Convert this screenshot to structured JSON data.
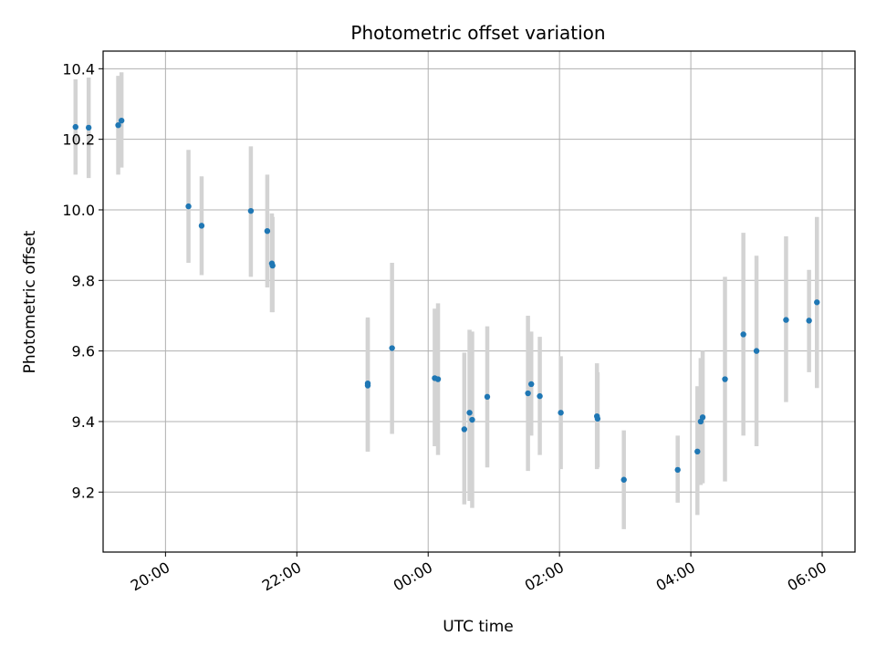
{
  "chart_data": {
    "type": "scatter",
    "title": "Photometric offset variation",
    "xlabel": "UTC time",
    "ylabel": "Photometric offset",
    "x_unit": "hours since 00:00 UTC (negative = previous evening)",
    "xlim": [
      -4.95,
      6.5
    ],
    "ylim": [
      9.03,
      10.45
    ],
    "xticks": [
      {
        "value": -4,
        "label": "20:00"
      },
      {
        "value": -2,
        "label": "22:00"
      },
      {
        "value": 0,
        "label": "00:00"
      },
      {
        "value": 2,
        "label": "02:00"
      },
      {
        "value": 4,
        "label": "04:00"
      },
      {
        "value": 6,
        "label": "06:00"
      }
    ],
    "yticks": [
      {
        "value": 9.2,
        "label": "9.2"
      },
      {
        "value": 9.4,
        "label": "9.4"
      },
      {
        "value": 9.6,
        "label": "9.6"
      },
      {
        "value": 9.8,
        "label": "9.8"
      },
      {
        "value": 10.0,
        "label": "10.0"
      },
      {
        "value": 10.2,
        "label": "10.2"
      },
      {
        "value": 10.4,
        "label": "10.4"
      }
    ],
    "grid": true,
    "marker_color": "#1f77b4",
    "errorbar_color": "#d3d3d3",
    "points": [
      {
        "x": -5.37,
        "y": 10.235,
        "ylo": 10.1,
        "yhi": 10.37
      },
      {
        "x": -5.17,
        "y": 10.233,
        "ylo": 10.09,
        "yhi": 10.375
      },
      {
        "x": -4.72,
        "y": 10.24,
        "ylo": 10.1,
        "yhi": 10.38
      },
      {
        "x": -4.67,
        "y": 10.253,
        "ylo": 10.12,
        "yhi": 10.39
      },
      {
        "x": -3.65,
        "y": 10.01,
        "ylo": 9.85,
        "yhi": 10.17
      },
      {
        "x": -3.45,
        "y": 9.955,
        "ylo": 9.815,
        "yhi": 10.095
      },
      {
        "x": -2.7,
        "y": 9.997,
        "ylo": 9.81,
        "yhi": 10.18
      },
      {
        "x": -2.45,
        "y": 9.94,
        "ylo": 9.78,
        "yhi": 10.1
      },
      {
        "x": -2.38,
        "y": 9.848,
        "ylo": 9.71,
        "yhi": 9.99
      },
      {
        "x": -2.37,
        "y": 9.842,
        "ylo": 9.71,
        "yhi": 9.98
      },
      {
        "x": -0.92,
        "y": 9.508,
        "ylo": 9.315,
        "yhi": 9.695
      },
      {
        "x": -0.92,
        "y": 9.502,
        "ylo": 9.315,
        "yhi": 9.69
      },
      {
        "x": -0.55,
        "y": 9.608,
        "ylo": 9.365,
        "yhi": 9.85
      },
      {
        "x": 0.1,
        "y": 9.523,
        "ylo": 9.33,
        "yhi": 9.72
      },
      {
        "x": 0.15,
        "y": 9.52,
        "ylo": 9.305,
        "yhi": 9.735
      },
      {
        "x": 0.55,
        "y": 9.378,
        "ylo": 9.165,
        "yhi": 9.595
      },
      {
        "x": 0.63,
        "y": 9.425,
        "ylo": 9.175,
        "yhi": 9.66
      },
      {
        "x": 0.67,
        "y": 9.405,
        "ylo": 9.155,
        "yhi": 9.655
      },
      {
        "x": 0.9,
        "y": 9.47,
        "ylo": 9.27,
        "yhi": 9.67
      },
      {
        "x": 1.52,
        "y": 9.48,
        "ylo": 9.26,
        "yhi": 9.7
      },
      {
        "x": 1.57,
        "y": 9.506,
        "ylo": 9.36,
        "yhi": 9.655
      },
      {
        "x": 1.7,
        "y": 9.472,
        "ylo": 9.305,
        "yhi": 9.64
      },
      {
        "x": 2.02,
        "y": 9.425,
        "ylo": 9.265,
        "yhi": 9.585
      },
      {
        "x": 2.57,
        "y": 9.415,
        "ylo": 9.265,
        "yhi": 9.565
      },
      {
        "x": 2.58,
        "y": 9.408,
        "ylo": 9.27,
        "yhi": 9.54
      },
      {
        "x": 2.98,
        "y": 9.235,
        "ylo": 9.095,
        "yhi": 9.375
      },
      {
        "x": 3.8,
        "y": 9.263,
        "ylo": 9.17,
        "yhi": 9.36
      },
      {
        "x": 4.1,
        "y": 9.315,
        "ylo": 9.135,
        "yhi": 9.5
      },
      {
        "x": 4.15,
        "y": 9.4,
        "ylo": 9.22,
        "yhi": 9.58
      },
      {
        "x": 4.18,
        "y": 9.412,
        "ylo": 9.225,
        "yhi": 9.6
      },
      {
        "x": 4.52,
        "y": 9.52,
        "ylo": 9.23,
        "yhi": 9.81
      },
      {
        "x": 4.8,
        "y": 9.647,
        "ylo": 9.36,
        "yhi": 9.935
      },
      {
        "x": 5.0,
        "y": 9.6,
        "ylo": 9.33,
        "yhi": 9.87
      },
      {
        "x": 5.45,
        "y": 9.688,
        "ylo": 9.455,
        "yhi": 9.925
      },
      {
        "x": 5.8,
        "y": 9.686,
        "ylo": 9.54,
        "yhi": 9.83
      },
      {
        "x": 5.92,
        "y": 9.738,
        "ylo": 9.495,
        "yhi": 9.98
      }
    ]
  }
}
